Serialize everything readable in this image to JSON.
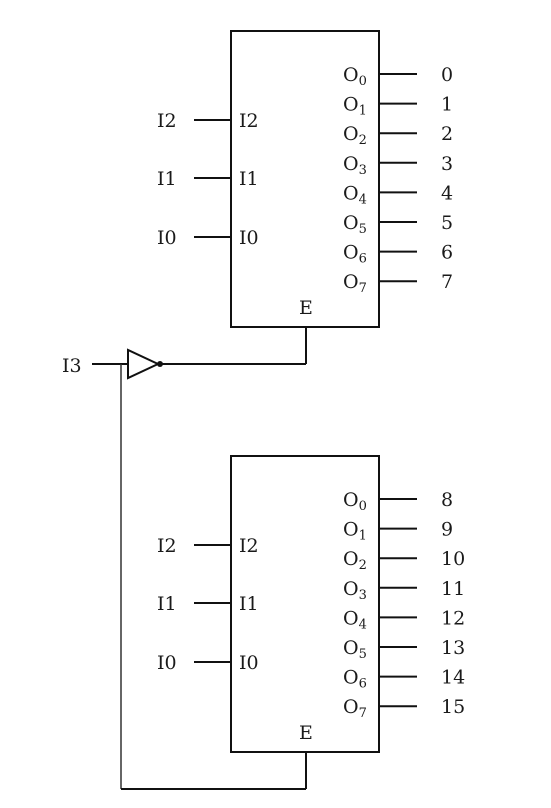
{
  "input_labels": [
    "I0",
    "I1",
    "I2"
  ],
  "input_pins": [
    "I0",
    "I1",
    "I2"
  ],
  "enable_label": "E",
  "output_pins": [
    "O",
    "O",
    "O",
    "O",
    "O",
    "O",
    "O",
    "O"
  ],
  "output_subscripts": [
    "0",
    "1",
    "2",
    "3",
    "4",
    "5",
    "6",
    "7"
  ],
  "select_label": "I3",
  "decoders": [
    {
      "outputs": [
        "0",
        "1",
        "2",
        "3",
        "4",
        "5",
        "6",
        "7"
      ]
    },
    {
      "outputs": [
        "8",
        "9",
        "10",
        "11",
        "12",
        "13",
        "14",
        "15"
      ]
    }
  ]
}
